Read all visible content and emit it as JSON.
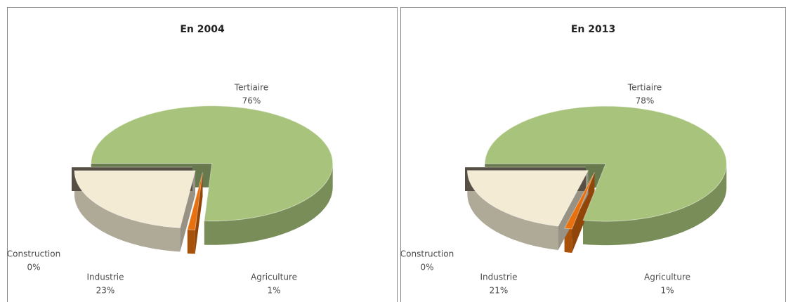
{
  "chart_data": [
    {
      "type": "pie3d",
      "title": "En 2004",
      "categories": [
        "Tertiaire",
        "Agriculture",
        "Industrie",
        "Construction"
      ],
      "values": [
        76,
        1,
        23,
        0
      ],
      "value_labels": [
        "76%",
        "1%",
        "23%",
        "0%"
      ],
      "colors": [
        "#a8c47c",
        "#e8700e",
        "#f3ebd3",
        "#8d7e6e"
      ]
    },
    {
      "type": "pie3d",
      "title": "En 2013",
      "categories": [
        "Tertiaire",
        "Agriculture",
        "Industrie",
        "Construction"
      ],
      "values": [
        78,
        1,
        21,
        0
      ],
      "value_labels": [
        "78%",
        "1%",
        "21%",
        "0%"
      ],
      "colors": [
        "#a8c47c",
        "#e8700e",
        "#f3ebd3",
        "#8d7e6e"
      ]
    }
  ]
}
